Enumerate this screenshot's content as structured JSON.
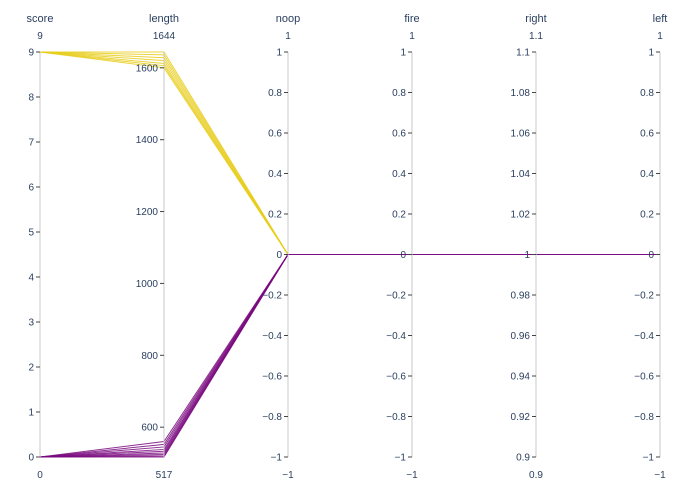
{
  "chart_data": {
    "type": "parallel_coordinates",
    "dimensions": [
      {
        "label": "score",
        "min": 0,
        "max": 9,
        "min_label": "0",
        "max_label": "9",
        "ticks": [
          0,
          1,
          2,
          3,
          4,
          5,
          6,
          7,
          8,
          9
        ],
        "tick_labels": [
          "0",
          "1",
          "2",
          "3",
          "4",
          "5",
          "6",
          "7",
          "8",
          "9"
        ]
      },
      {
        "label": "length",
        "min": 517,
        "max": 1644,
        "min_label": "517",
        "max_label": "1644",
        "ticks": [
          600,
          800,
          1000,
          1200,
          1400,
          1600
        ],
        "tick_labels": [
          "600",
          "800",
          "1000",
          "1200",
          "1400",
          "1600"
        ]
      },
      {
        "label": "noop",
        "min": -1,
        "max": 1,
        "min_label": "−1",
        "max_label": "1",
        "ticks": [
          -1,
          -0.8,
          -0.6,
          -0.4,
          -0.2,
          0,
          0.2,
          0.4,
          0.6,
          0.8,
          1
        ],
        "tick_labels": [
          "−1",
          "−0.8",
          "−0.6",
          "−0.4",
          "−0.2",
          "0",
          "0.2",
          "0.4",
          "0.6",
          "0.8",
          "1"
        ]
      },
      {
        "label": "fire",
        "min": -1,
        "max": 1,
        "min_label": "−1",
        "max_label": "1",
        "ticks": [
          -1,
          -0.8,
          -0.6,
          -0.4,
          -0.2,
          0,
          0.2,
          0.4,
          0.6,
          0.8,
          1
        ],
        "tick_labels": [
          "−1",
          "−0.8",
          "−0.6",
          "−0.4",
          "−0.2",
          "0",
          "0.2",
          "0.4",
          "0.6",
          "0.8",
          "1"
        ]
      },
      {
        "label": "right",
        "min": 0.9,
        "max": 1.1,
        "min_label": "0.9",
        "max_label": "1.1",
        "ticks": [
          0.9,
          0.92,
          0.94,
          0.96,
          0.98,
          1,
          1.02,
          1.04,
          1.06,
          1.08,
          1.1
        ],
        "tick_labels": [
          "0.9",
          "0.92",
          "0.94",
          "0.96",
          "0.98",
          "1",
          "1.02",
          "1.04",
          "1.06",
          "1.08",
          "1.1"
        ]
      },
      {
        "label": "left",
        "min": -1,
        "max": 1,
        "min_label": "−1",
        "max_label": "1",
        "ticks": [
          -1,
          -0.8,
          -0.6,
          -0.4,
          -0.2,
          0,
          0.2,
          0.4,
          0.6,
          0.8,
          1
        ],
        "tick_labels": [
          "−1",
          "−0.8",
          "−0.6",
          "−0.4",
          "−0.2",
          "0",
          "0.2",
          "0.4",
          "0.6",
          "0.8",
          "1"
        ]
      }
    ],
    "colors": {
      "high_score": "#e8cc1a",
      "low_score": "#7a0a7f",
      "axis": "#c8c8c8",
      "text": "#2a3f5f"
    },
    "lines": [
      {
        "score": 9,
        "length": 1644,
        "noop": 0,
        "fire": 0,
        "right": 1,
        "left": 0
      },
      {
        "score": 9,
        "length": 1636,
        "noop": 0,
        "fire": 0,
        "right": 1,
        "left": 0
      },
      {
        "score": 9,
        "length": 1628,
        "noop": 0,
        "fire": 0,
        "right": 1,
        "left": 0
      },
      {
        "score": 9,
        "length": 1620,
        "noop": 0,
        "fire": 0,
        "right": 1,
        "left": 0
      },
      {
        "score": 9,
        "length": 1612,
        "noop": 0,
        "fire": 0,
        "right": 1,
        "left": 0
      },
      {
        "score": 9,
        "length": 1606,
        "noop": 0,
        "fire": 0,
        "right": 1,
        "left": 0
      },
      {
        "score": 9,
        "length": 1600,
        "noop": 0,
        "fire": 0,
        "right": 1,
        "left": 0
      },
      {
        "score": 0,
        "length": 517,
        "noop": 0,
        "fire": 0,
        "right": 1,
        "left": 0
      },
      {
        "score": 0,
        "length": 520,
        "noop": 0,
        "fire": 0,
        "right": 1,
        "left": 0
      },
      {
        "score": 0,
        "length": 524,
        "noop": 0,
        "fire": 0,
        "right": 1,
        "left": 0
      },
      {
        "score": 0,
        "length": 528,
        "noop": 0,
        "fire": 0,
        "right": 1,
        "left": 0
      },
      {
        "score": 0,
        "length": 533,
        "noop": 0,
        "fire": 0,
        "right": 1,
        "left": 0
      },
      {
        "score": 0,
        "length": 538,
        "noop": 0,
        "fire": 0,
        "right": 1,
        "left": 0
      },
      {
        "score": 0,
        "length": 545,
        "noop": 0,
        "fire": 0,
        "right": 1,
        "left": 0
      },
      {
        "score": 0,
        "length": 552,
        "noop": 0,
        "fire": 0,
        "right": 1,
        "left": 0
      },
      {
        "score": 0,
        "length": 560,
        "noop": 0,
        "fire": 0,
        "right": 1,
        "left": 0
      }
    ]
  }
}
